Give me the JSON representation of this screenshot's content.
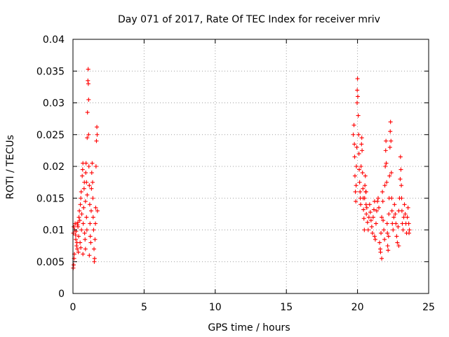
{
  "chart_data": {
    "type": "scatter",
    "title": "Day 071 of 2017, Rate Of TEC Index for receiver mriv",
    "xlabel": "GPS time / hours",
    "ylabel": "ROTI / TECUs",
    "xlim": [
      0,
      25
    ],
    "ylim": [
      0,
      0.04
    ],
    "x_ticks": [
      0,
      5,
      10,
      15,
      20,
      25
    ],
    "x_tick_labels": [
      "0",
      "5",
      "10",
      "15",
      "20",
      "25"
    ],
    "y_ticks": [
      0,
      0.005,
      0.01,
      0.015,
      0.02,
      0.025,
      0.03,
      0.035,
      0.04
    ],
    "y_tick_labels": [
      "0",
      "0.005",
      "0.01",
      "0.015",
      "0.02",
      "0.025",
      "0.03",
      "0.035",
      "0.04"
    ],
    "grid": true,
    "marker": "+",
    "color": "#ff0000",
    "series": [
      {
        "name": "ROTI",
        "points": [
          [
            0.02,
            0.004
          ],
          [
            0.05,
            0.0045
          ],
          [
            0.08,
            0.0055
          ],
          [
            0.1,
            0.0062
          ],
          [
            0.03,
            0.0095
          ],
          [
            0.06,
            0.0105
          ],
          [
            0.12,
            0.01
          ],
          [
            0.15,
            0.011
          ],
          [
            0.18,
            0.0092
          ],
          [
            0.2,
            0.0085
          ],
          [
            0.22,
            0.0098
          ],
          [
            0.25,
            0.0075
          ],
          [
            0.28,
            0.008
          ],
          [
            0.3,
            0.007
          ],
          [
            0.32,
            0.0108
          ],
          [
            0.35,
            0.0112
          ],
          [
            0.38,
            0.0065
          ],
          [
            0.4,
            0.009
          ],
          [
            0.42,
            0.012
          ],
          [
            0.45,
            0.013
          ],
          [
            0.48,
            0.0115
          ],
          [
            0.5,
            0.008
          ],
          [
            0.52,
            0.014
          ],
          [
            0.55,
            0.015
          ],
          [
            0.58,
            0.016
          ],
          [
            0.6,
            0.01
          ],
          [
            0.62,
            0.0125
          ],
          [
            0.65,
            0.0185
          ],
          [
            0.68,
            0.0195
          ],
          [
            0.7,
            0.0205
          ],
          [
            0.72,
            0.011
          ],
          [
            0.75,
            0.0135
          ],
          [
            0.78,
            0.0165
          ],
          [
            0.8,
            0.0175
          ],
          [
            0.82,
            0.0095
          ],
          [
            0.85,
            0.0085
          ],
          [
            0.88,
            0.0145
          ],
          [
            0.9,
            0.019
          ],
          [
            0.92,
            0.0205
          ],
          [
            0.95,
            0.012
          ],
          [
            0.98,
            0.01
          ],
          [
            1.0,
            0.0155
          ],
          [
            1.0,
            0.0245
          ],
          [
            1.02,
            0.0285
          ],
          [
            1.05,
            0.0335
          ],
          [
            1.07,
            0.0353
          ],
          [
            1.08,
            0.033
          ],
          [
            1.1,
            0.0305
          ],
          [
            1.1,
            0.025
          ],
          [
            1.12,
            0.02
          ],
          [
            1.15,
            0.017
          ],
          [
            1.18,
            0.014
          ],
          [
            1.2,
            0.011
          ],
          [
            1.22,
            0.009
          ],
          [
            1.25,
            0.008
          ],
          [
            1.28,
            0.013
          ],
          [
            1.3,
            0.0165
          ],
          [
            1.32,
            0.019
          ],
          [
            1.35,
            0.0205
          ],
          [
            1.38,
            0.0175
          ],
          [
            1.4,
            0.015
          ],
          [
            1.42,
            0.012
          ],
          [
            1.45,
            0.01
          ],
          [
            1.48,
            0.007
          ],
          [
            1.5,
            0.005
          ],
          [
            1.52,
            0.0055
          ],
          [
            1.55,
            0.0085
          ],
          [
            1.58,
            0.011
          ],
          [
            1.6,
            0.0135
          ],
          [
            1.62,
            0.02
          ],
          [
            1.65,
            0.024
          ],
          [
            1.68,
            0.0262
          ],
          [
            1.7,
            0.025
          ],
          [
            1.72,
            0.013
          ],
          [
            0.88,
            0.007
          ],
          [
            0.7,
            0.0062
          ],
          [
            0.55,
            0.0072
          ],
          [
            1.15,
            0.006
          ],
          [
            0.35,
            0.0105
          ],
          [
            0.95,
            0.0175
          ],
          [
            19.7,
            0.025
          ],
          [
            19.75,
            0.0265
          ],
          [
            19.78,
            0.0235
          ],
          [
            19.8,
            0.0215
          ],
          [
            19.82,
            0.0185
          ],
          [
            19.85,
            0.016
          ],
          [
            19.88,
            0.0145
          ],
          [
            19.9,
            0.017
          ],
          [
            19.92,
            0.02
          ],
          [
            19.95,
            0.023
          ],
          [
            19.97,
            0.03
          ],
          [
            19.98,
            0.032
          ],
          [
            20.0,
            0.0338
          ],
          [
            20.02,
            0.031
          ],
          [
            20.05,
            0.028
          ],
          [
            20.08,
            0.025
          ],
          [
            20.1,
            0.022
          ],
          [
            20.12,
            0.0195
          ],
          [
            20.15,
            0.0175
          ],
          [
            20.18,
            0.016
          ],
          [
            20.2,
            0.015
          ],
          [
            20.22,
            0.014
          ],
          [
            20.25,
            0.02
          ],
          [
            20.28,
            0.0235
          ],
          [
            20.3,
            0.0245
          ],
          [
            20.32,
            0.0225
          ],
          [
            20.35,
            0.019
          ],
          [
            20.38,
            0.0165
          ],
          [
            20.4,
            0.015
          ],
          [
            20.42,
            0.0132
          ],
          [
            20.45,
            0.0118
          ],
          [
            20.48,
            0.01
          ],
          [
            20.5,
            0.015
          ],
          [
            20.52,
            0.017
          ],
          [
            20.55,
            0.0185
          ],
          [
            20.58,
            0.016
          ],
          [
            20.6,
            0.014
          ],
          [
            20.62,
            0.0125
          ],
          [
            20.65,
            0.0135
          ],
          [
            20.7,
            0.0112
          ],
          [
            20.75,
            0.01
          ],
          [
            20.8,
            0.012
          ],
          [
            20.85,
            0.014
          ],
          [
            20.9,
            0.0128
          ],
          [
            20.95,
            0.0115
          ],
          [
            21.0,
            0.0105
          ],
          [
            21.05,
            0.0095
          ],
          [
            21.1,
            0.012
          ],
          [
            21.15,
            0.0132
          ],
          [
            21.2,
            0.009
          ],
          [
            21.25,
            0.0085
          ],
          [
            21.3,
            0.011
          ],
          [
            21.35,
            0.013
          ],
          [
            21.4,
            0.0145
          ],
          [
            21.45,
            0.015
          ],
          [
            21.5,
            0.0135
          ],
          [
            21.55,
            0.008
          ],
          [
            21.6,
            0.007
          ],
          [
            21.62,
            0.0065
          ],
          [
            21.65,
            0.0095
          ],
          [
            21.7,
            0.012
          ],
          [
            21.75,
            0.016
          ],
          [
            21.78,
            0.0145
          ],
          [
            21.8,
            0.0115
          ],
          [
            21.85,
            0.01
          ],
          [
            21.9,
            0.0085
          ],
          [
            21.92,
            0.017
          ],
          [
            21.95,
            0.02
          ],
          [
            21.98,
            0.0225
          ],
          [
            22.0,
            0.024
          ],
          [
            22.02,
            0.0205
          ],
          [
            22.05,
            0.0175
          ],
          [
            22.08,
            0.011
          ],
          [
            22.1,
            0.0095
          ],
          [
            22.12,
            0.0075
          ],
          [
            22.15,
            0.0068
          ],
          [
            22.18,
            0.009
          ],
          [
            22.2,
            0.0125
          ],
          [
            22.22,
            0.015
          ],
          [
            22.25,
            0.0185
          ],
          [
            22.28,
            0.023
          ],
          [
            22.3,
            0.0255
          ],
          [
            22.32,
            0.027
          ],
          [
            22.35,
            0.024
          ],
          [
            22.38,
            0.019
          ],
          [
            22.4,
            0.015
          ],
          [
            22.42,
            0.013
          ],
          [
            22.45,
            0.011
          ],
          [
            22.5,
            0.01
          ],
          [
            22.55,
            0.012
          ],
          [
            22.6,
            0.014
          ],
          [
            22.65,
            0.0125
          ],
          [
            22.7,
            0.011
          ],
          [
            22.75,
            0.009
          ],
          [
            22.8,
            0.008
          ],
          [
            22.85,
            0.0105
          ],
          [
            22.9,
            0.013
          ],
          [
            22.95,
            0.015
          ],
          [
            23.0,
            0.018
          ],
          [
            23.02,
            0.0215
          ],
          [
            23.05,
            0.0195
          ],
          [
            23.08,
            0.017
          ],
          [
            23.1,
            0.015
          ],
          [
            23.12,
            0.013
          ],
          [
            23.15,
            0.011
          ],
          [
            23.2,
            0.01
          ],
          [
            23.25,
            0.012
          ],
          [
            23.3,
            0.014
          ],
          [
            23.35,
            0.0125
          ],
          [
            23.4,
            0.011
          ],
          [
            23.45,
            0.0095
          ],
          [
            23.5,
            0.012
          ],
          [
            23.55,
            0.0135
          ],
          [
            23.6,
            0.011
          ],
          [
            23.62,
            0.0095
          ],
          [
            23.65,
            0.01
          ],
          [
            21.2,
            0.0145
          ],
          [
            20.6,
            0.016
          ],
          [
            21.7,
            0.0055
          ],
          [
            22.9,
            0.0075
          ]
        ]
      }
    ]
  }
}
